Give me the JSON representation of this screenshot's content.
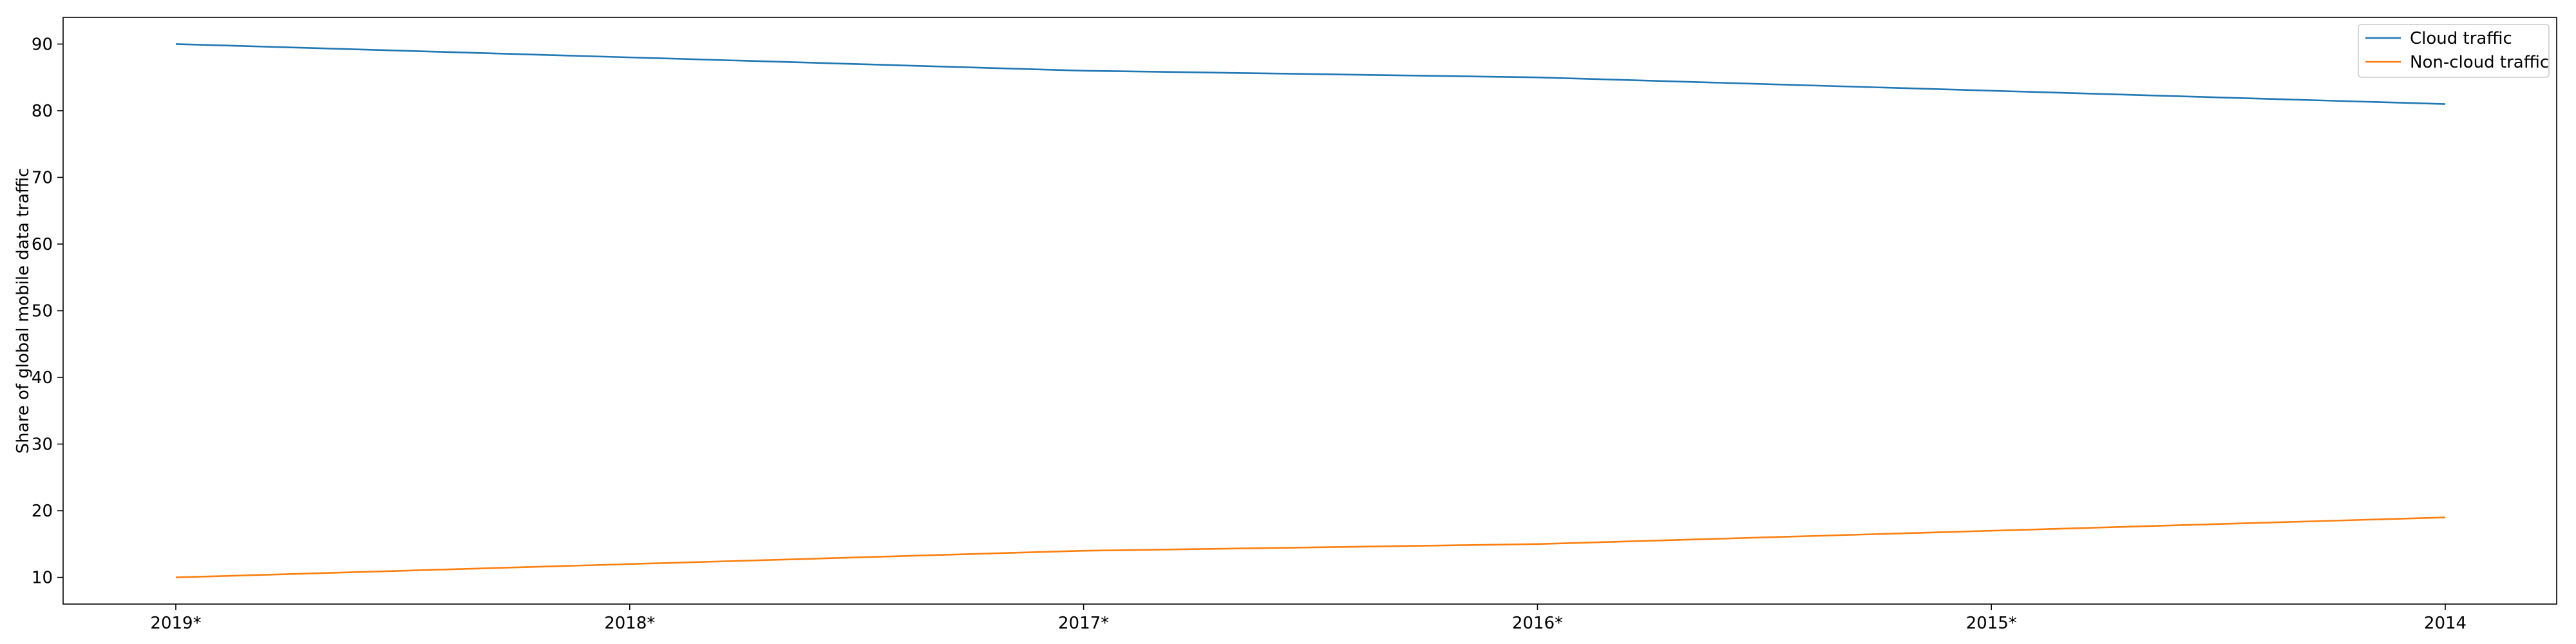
{
  "chart_data": {
    "type": "line",
    "categories": [
      "2019*",
      "2018*",
      "2017*",
      "2016*",
      "2015*",
      "2014"
    ],
    "series": [
      {
        "name": "Cloud traffic",
        "values": [
          90,
          88,
          86,
          85,
          83,
          81
        ],
        "color": "#1f77b4"
      },
      {
        "name": "Non-cloud traffic",
        "values": [
          10,
          12,
          14,
          15,
          17,
          19
        ],
        "color": "#ff7f0e"
      }
    ],
    "xlabel": "",
    "ylabel": "Share of global mobile data traffic",
    "ylim": [
      6,
      94
    ],
    "yticks": [
      10,
      20,
      30,
      40,
      50,
      60,
      70,
      80,
      90
    ],
    "grid": false,
    "legend_position": "top-right"
  }
}
